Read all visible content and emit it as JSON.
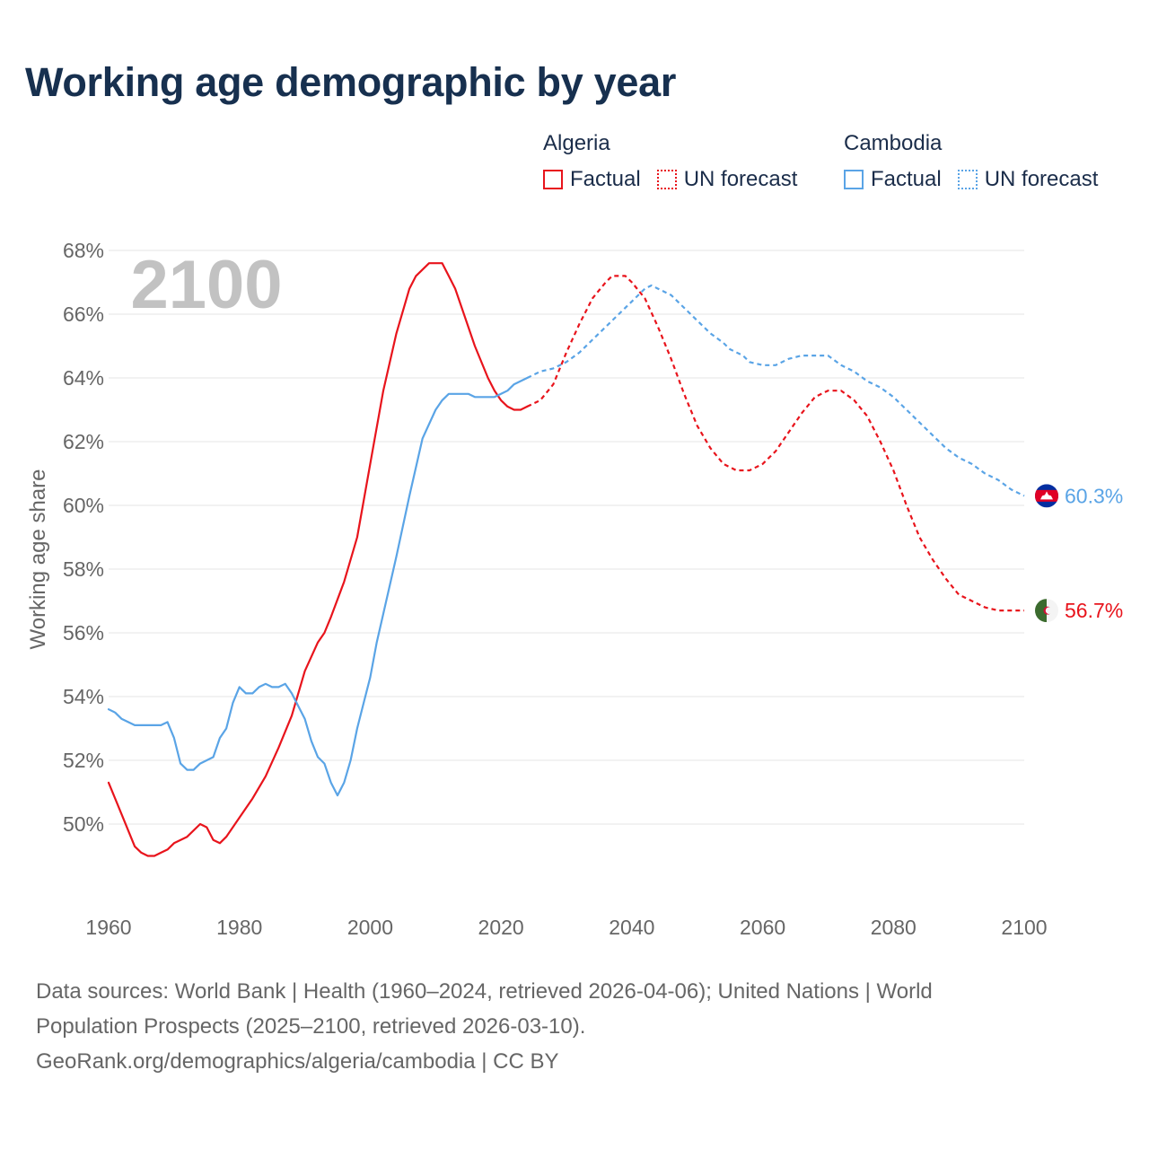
{
  "page": {
    "title": "Working age demographic by year"
  },
  "legend": {
    "groups": [
      {
        "name": "Algeria",
        "color": "#e8141c",
        "factual_label": "Factual",
        "forecast_label": "UN forecast"
      },
      {
        "name": "Cambodia",
        "color": "#5aa4e6",
        "factual_label": "Factual",
        "forecast_label": "UN forecast"
      }
    ]
  },
  "sources": {
    "line1": "Data sources: World Bank | Health (1960–2024, retrieved 2026-04-06); United Nations | World",
    "line2": "Population Prospects (2025–2100, retrieved 2026-03-10).",
    "line3": "GeoRank.org/demographics/algeria/cambodia | CC BY"
  },
  "chart_data": {
    "type": "line",
    "title": "Working age demographic by year",
    "ylabel": "Working age share",
    "xlabel": "",
    "year_overlay": "2100",
    "xlim": [
      1960,
      2100
    ],
    "ylim": [
      48,
      68
    ],
    "x_ticks": [
      "1960",
      "1980",
      "2000",
      "2020",
      "2040",
      "2060",
      "2080",
      "2100"
    ],
    "y_ticks": [
      "50%",
      "52%",
      "54%",
      "56%",
      "58%",
      "60%",
      "62%",
      "64%",
      "66%",
      "68%"
    ],
    "grid": true,
    "series": [
      {
        "name": "Algeria",
        "kind": "factual",
        "color": "#e8141c",
        "points": [
          [
            1960,
            51.3
          ],
          [
            1962,
            50.3
          ],
          [
            1964,
            49.3
          ],
          [
            1965,
            49.1
          ],
          [
            1966,
            49.0
          ],
          [
            1967,
            49.0
          ],
          [
            1968,
            49.1
          ],
          [
            1969,
            49.2
          ],
          [
            1970,
            49.4
          ],
          [
            1972,
            49.6
          ],
          [
            1974,
            50.0
          ],
          [
            1975,
            49.9
          ],
          [
            1976,
            49.5
          ],
          [
            1977,
            49.4
          ],
          [
            1978,
            49.6
          ],
          [
            1980,
            50.2
          ],
          [
            1982,
            50.8
          ],
          [
            1984,
            51.5
          ],
          [
            1986,
            52.4
          ],
          [
            1988,
            53.4
          ],
          [
            1990,
            54.8
          ],
          [
            1992,
            55.7
          ],
          [
            1993,
            56.0
          ],
          [
            1994,
            56.5
          ],
          [
            1996,
            57.6
          ],
          [
            1998,
            59.0
          ],
          [
            2000,
            61.3
          ],
          [
            2002,
            63.6
          ],
          [
            2004,
            65.4
          ],
          [
            2006,
            66.8
          ],
          [
            2007,
            67.2
          ],
          [
            2008,
            67.4
          ],
          [
            2009,
            67.6
          ],
          [
            2010,
            67.6
          ],
          [
            2011,
            67.6
          ],
          [
            2012,
            67.2
          ],
          [
            2013,
            66.8
          ],
          [
            2014,
            66.2
          ],
          [
            2016,
            65.0
          ],
          [
            2018,
            64.0
          ],
          [
            2019,
            63.6
          ],
          [
            2020,
            63.3
          ],
          [
            2021,
            63.1
          ],
          [
            2022,
            63.0
          ],
          [
            2023,
            63.0
          ],
          [
            2024,
            63.1
          ]
        ]
      },
      {
        "name": "Algeria",
        "kind": "forecast",
        "color": "#e8141c",
        "points": [
          [
            2024,
            63.1
          ],
          [
            2026,
            63.3
          ],
          [
            2028,
            63.8
          ],
          [
            2030,
            64.8
          ],
          [
            2032,
            65.7
          ],
          [
            2034,
            66.5
          ],
          [
            2036,
            67.0
          ],
          [
            2037,
            67.2
          ],
          [
            2038,
            67.2
          ],
          [
            2039,
            67.2
          ],
          [
            2040,
            67.0
          ],
          [
            2042,
            66.5
          ],
          [
            2044,
            65.6
          ],
          [
            2046,
            64.6
          ],
          [
            2048,
            63.5
          ],
          [
            2050,
            62.5
          ],
          [
            2052,
            61.8
          ],
          [
            2054,
            61.3
          ],
          [
            2056,
            61.1
          ],
          [
            2058,
            61.1
          ],
          [
            2060,
            61.3
          ],
          [
            2062,
            61.7
          ],
          [
            2064,
            62.3
          ],
          [
            2066,
            62.9
          ],
          [
            2068,
            63.4
          ],
          [
            2070,
            63.6
          ],
          [
            2071,
            63.6
          ],
          [
            2072,
            63.6
          ],
          [
            2074,
            63.3
          ],
          [
            2076,
            62.8
          ],
          [
            2078,
            62.0
          ],
          [
            2080,
            61.1
          ],
          [
            2082,
            60.0
          ],
          [
            2084,
            59.0
          ],
          [
            2086,
            58.3
          ],
          [
            2088,
            57.7
          ],
          [
            2090,
            57.2
          ],
          [
            2092,
            57.0
          ],
          [
            2094,
            56.8
          ],
          [
            2096,
            56.7
          ],
          [
            2098,
            56.7
          ],
          [
            2100,
            56.7
          ]
        ]
      },
      {
        "name": "Cambodia",
        "kind": "factual",
        "color": "#5aa4e6",
        "points": [
          [
            1960,
            53.6
          ],
          [
            1961,
            53.5
          ],
          [
            1962,
            53.3
          ],
          [
            1963,
            53.2
          ],
          [
            1964,
            53.1
          ],
          [
            1966,
            53.1
          ],
          [
            1968,
            53.1
          ],
          [
            1969,
            53.2
          ],
          [
            1970,
            52.7
          ],
          [
            1971,
            51.9
          ],
          [
            1972,
            51.7
          ],
          [
            1973,
            51.7
          ],
          [
            1974,
            51.9
          ],
          [
            1976,
            52.1
          ],
          [
            1977,
            52.7
          ],
          [
            1978,
            53.0
          ],
          [
            1979,
            53.8
          ],
          [
            1980,
            54.3
          ],
          [
            1981,
            54.1
          ],
          [
            1982,
            54.1
          ],
          [
            1983,
            54.3
          ],
          [
            1984,
            54.4
          ],
          [
            1985,
            54.3
          ],
          [
            1986,
            54.3
          ],
          [
            1987,
            54.4
          ],
          [
            1988,
            54.1
          ],
          [
            1989,
            53.7
          ],
          [
            1990,
            53.3
          ],
          [
            1991,
            52.6
          ],
          [
            1992,
            52.1
          ],
          [
            1993,
            51.9
          ],
          [
            1994,
            51.3
          ],
          [
            1995,
            50.9
          ],
          [
            1996,
            51.3
          ],
          [
            1997,
            52.0
          ],
          [
            1998,
            53.0
          ],
          [
            1999,
            53.8
          ],
          [
            2000,
            54.6
          ],
          [
            2001,
            55.7
          ],
          [
            2002,
            56.6
          ],
          [
            2004,
            58.4
          ],
          [
            2006,
            60.3
          ],
          [
            2008,
            62.1
          ],
          [
            2010,
            63.0
          ],
          [
            2011,
            63.3
          ],
          [
            2012,
            63.5
          ],
          [
            2014,
            63.5
          ],
          [
            2015,
            63.5
          ],
          [
            2016,
            63.4
          ],
          [
            2018,
            63.4
          ],
          [
            2019,
            63.4
          ],
          [
            2020,
            63.5
          ],
          [
            2021,
            63.6
          ],
          [
            2022,
            63.8
          ],
          [
            2024,
            64.0
          ]
        ]
      },
      {
        "name": "Cambodia",
        "kind": "forecast",
        "color": "#5aa4e6",
        "points": [
          [
            2024,
            64.0
          ],
          [
            2026,
            64.2
          ],
          [
            2028,
            64.3
          ],
          [
            2030,
            64.5
          ],
          [
            2032,
            64.8
          ],
          [
            2034,
            65.2
          ],
          [
            2036,
            65.6
          ],
          [
            2038,
            66.0
          ],
          [
            2040,
            66.4
          ],
          [
            2042,
            66.8
          ],
          [
            2043,
            66.9
          ],
          [
            2044,
            66.8
          ],
          [
            2046,
            66.6
          ],
          [
            2048,
            66.2
          ],
          [
            2050,
            65.8
          ],
          [
            2052,
            65.4
          ],
          [
            2054,
            65.1
          ],
          [
            2055,
            64.9
          ],
          [
            2057,
            64.7
          ],
          [
            2058,
            64.5
          ],
          [
            2060,
            64.4
          ],
          [
            2062,
            64.4
          ],
          [
            2064,
            64.6
          ],
          [
            2066,
            64.7
          ],
          [
            2068,
            64.7
          ],
          [
            2070,
            64.7
          ],
          [
            2072,
            64.4
          ],
          [
            2074,
            64.2
          ],
          [
            2076,
            63.9
          ],
          [
            2078,
            63.7
          ],
          [
            2080,
            63.4
          ],
          [
            2082,
            63.0
          ],
          [
            2084,
            62.6
          ],
          [
            2086,
            62.2
          ],
          [
            2088,
            61.8
          ],
          [
            2090,
            61.5
          ],
          [
            2092,
            61.3
          ],
          [
            2094,
            61.0
          ],
          [
            2096,
            60.8
          ],
          [
            2098,
            60.5
          ],
          [
            2100,
            60.3
          ]
        ]
      }
    ],
    "end_labels": [
      {
        "name": "Cambodia",
        "value": 60.3,
        "text": "60.3%",
        "color": "#5aa4e6",
        "flag": "cambodia-flag"
      },
      {
        "name": "Algeria",
        "value": 56.7,
        "text": "56.7%",
        "color": "#e8141c",
        "flag": "algeria-flag"
      }
    ]
  }
}
